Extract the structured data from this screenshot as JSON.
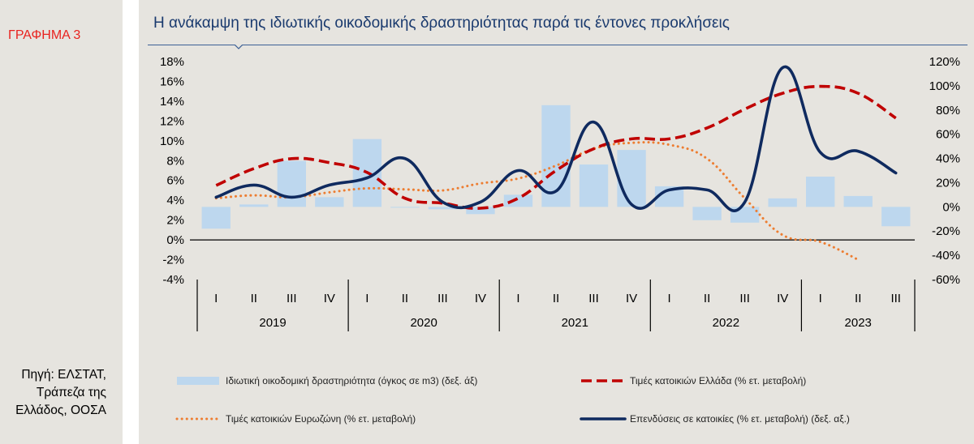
{
  "figure_label": "ΓΡΑΦΗΜΑ 3",
  "source_text": "Πηγή: ΕΛΣΤΑΤ,\nΤράπεζα της\nΕλλάδος, ΟΟΣΑ",
  "colors": {
    "background": "#e6e4df",
    "title": "#1a3a6e",
    "label_red": "#e8231f",
    "bars": "#bdd7ee",
    "greece_prices": "#c00000",
    "euro_prices": "#ed7d31",
    "investment": "#0f2a5f"
  },
  "chart_data": {
    "type": "bar",
    "title": "Η ανάκαμψη της ιδιωτικής οικοδομικής δραστηριότητας παρά τις έντονες προκλήσεις",
    "categories": [
      "I",
      "II",
      "III",
      "IV",
      "I",
      "II",
      "III",
      "IV",
      "I",
      "II",
      "III",
      "IV",
      "I",
      "II",
      "III",
      "IV",
      "I",
      "II",
      "III"
    ],
    "years": [
      {
        "label": "2019",
        "start": 0,
        "count": 4
      },
      {
        "label": "2020",
        "start": 4,
        "count": 4
      },
      {
        "label": "2021",
        "start": 8,
        "count": 4
      },
      {
        "label": "2022",
        "start": 12,
        "count": 4
      },
      {
        "label": "2023",
        "start": 16,
        "count": 3
      }
    ],
    "left_axis": {
      "ylim": [
        -4,
        18
      ],
      "ticks": [
        -4,
        -2,
        0,
        2,
        4,
        6,
        8,
        10,
        12,
        14,
        16,
        18
      ],
      "tick_labels": [
        "-4%",
        "-2%",
        "0%",
        "2%",
        "4%",
        "6%",
        "8%",
        "10%",
        "12%",
        "14%",
        "16%",
        "18%"
      ]
    },
    "right_axis": {
      "ylim": [
        -60,
        120
      ],
      "ticks": [
        -60,
        -40,
        -20,
        0,
        20,
        40,
        60,
        80,
        100,
        120
      ],
      "tick_labels": [
        "-60%",
        "-40%",
        "-20%",
        "0%",
        "20%",
        "40%",
        "60%",
        "80%",
        "100%",
        "120%"
      ]
    },
    "series": [
      {
        "name": "Ιδιωτική οικοδομική δραστηριότητα (όγκος σε m3) (δεξ. άξ)",
        "kind": "bar",
        "axis": "right",
        "style": "bar",
        "values": [
          -18,
          2,
          38,
          8,
          56,
          0,
          -2,
          -6,
          10,
          84,
          35,
          47,
          17,
          -11,
          -13,
          7,
          25,
          9,
          -16
        ]
      },
      {
        "name": "Τιμές κατοικιών Ελλάδα (% ετ. μεταβολή)",
        "kind": "line",
        "axis": "left",
        "style": "dashed",
        "values": [
          5.5,
          7.2,
          8.2,
          7.8,
          6.8,
          4.2,
          3.7,
          3.2,
          4.2,
          7.0,
          9.2,
          10.2,
          10.2,
          11.3,
          13.2,
          14.8,
          15.5,
          14.8,
          12.3
        ]
      },
      {
        "name": "Τιμές κατοικιών Ευρωζώνη (% ετ. μεταβολή)",
        "kind": "line",
        "axis": "left",
        "style": "dotted",
        "values": [
          4.2,
          4.5,
          4.3,
          4.8,
          5.2,
          5.1,
          5.0,
          5.7,
          6.2,
          7.5,
          9.2,
          9.8,
          9.6,
          8.2,
          4.2,
          0.5,
          -0.2,
          -2.0,
          null
        ]
      },
      {
        "name": "Επενδύσεις σε κατοικίες (% ετ. μεταβολή) (δεξ. αξ.)",
        "kind": "line",
        "axis": "right",
        "style": "solid",
        "values": [
          8,
          18,
          8,
          18,
          24,
          40,
          4,
          4,
          30,
          13,
          70,
          2,
          14,
          14,
          4,
          115,
          45,
          46,
          28
        ]
      }
    ],
    "legend_position": "bottom",
    "grid": false
  }
}
